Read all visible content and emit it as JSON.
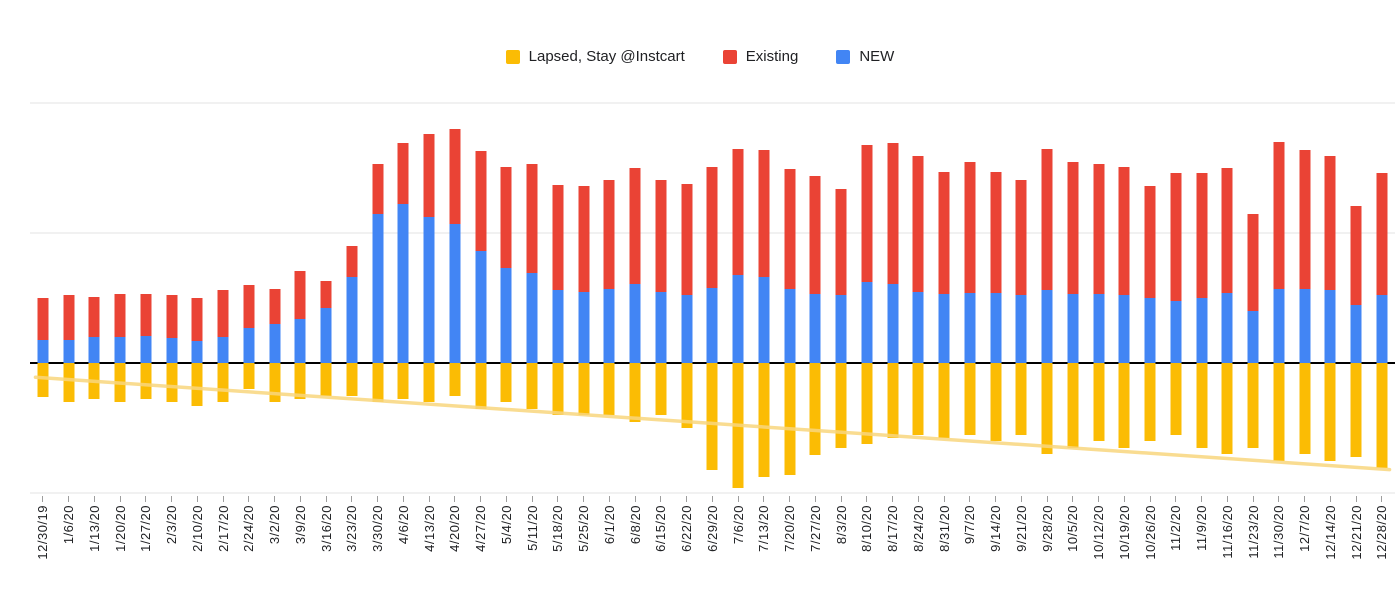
{
  "legend": {
    "position": "top",
    "items": [
      {
        "label": "Lapsed, Stay @Instcart",
        "color": "#FBBC04"
      },
      {
        "label": "Existing",
        "color": "#EA4335"
      },
      {
        "label": "NEW",
        "color": "#4285F4"
      }
    ]
  },
  "style": {
    "background": "#ffffff",
    "gridline_color": "#e3e3e3",
    "baseline_color": "#000000",
    "tick_color": "#9e9e9e",
    "label_color": "#202124"
  },
  "chart_data": {
    "type": "bar",
    "stacked": true,
    "title": "",
    "xlabel": "",
    "ylabel": "",
    "legend_position": "top",
    "grid": true,
    "ylim": [
      -100,
      200
    ],
    "gridlines": [
      200,
      100,
      0,
      -100
    ],
    "x_label_rotation_deg": 90,
    "categories": [
      "12/30/19",
      "1/6/20",
      "1/13/20",
      "1/20/20",
      "1/27/20",
      "2/3/20",
      "2/10/20",
      "2/17/20",
      "2/24/20",
      "3/2/20",
      "3/9/20",
      "3/16/20",
      "3/23/20",
      "3/30/20",
      "4/6/20",
      "4/13/20",
      "4/20/20",
      "4/27/20",
      "5/4/20",
      "5/11/20",
      "5/18/20",
      "5/25/20",
      "6/1/20",
      "6/8/20",
      "6/15/20",
      "6/22/20",
      "6/29/20",
      "7/6/20",
      "7/13/20",
      "7/20/20",
      "7/27/20",
      "8/3/20",
      "8/10/20",
      "8/17/20",
      "8/24/20",
      "8/31/20",
      "9/7/20",
      "9/14/20",
      "9/21/20",
      "9/28/20",
      "10/5/20",
      "10/12/20",
      "10/19/20",
      "10/26/20",
      "11/2/20",
      "11/9/20",
      "11/16/20",
      "11/23/20",
      "11/30/20",
      "12/7/20",
      "12/14/20",
      "12/21/20",
      "12/28/20"
    ],
    "series": [
      {
        "name": "NEW",
        "color": "#4285F4",
        "values": [
          18,
          18,
          20,
          20,
          21,
          19,
          17,
          20,
          27,
          30,
          34,
          42,
          66,
          115,
          122,
          112,
          107,
          86,
          73,
          69,
          56,
          55,
          57,
          61,
          55,
          52,
          58,
          68,
          66,
          57,
          53,
          52,
          62,
          61,
          55,
          53,
          54,
          54,
          52,
          56,
          53,
          53,
          52,
          50,
          48,
          50,
          54,
          40,
          57,
          57,
          56,
          45,
          52
        ]
      },
      {
        "name": "Existing",
        "color": "#EA4335",
        "values": [
          32,
          34,
          31,
          33,
          32,
          33,
          33,
          36,
          33,
          27,
          37,
          21,
          24,
          38,
          47,
          64,
          73,
          77,
          78,
          84,
          81,
          81,
          84,
          89,
          86,
          86,
          93,
          97,
          98,
          92,
          91,
          82,
          106,
          108,
          104,
          94,
          101,
          93,
          89,
          109,
          102,
          100,
          99,
          86,
          98,
          96,
          96,
          75,
          113,
          107,
          103,
          76,
          94
        ]
      },
      {
        "name": "Lapsed, Stay @Instcart",
        "color": "#FBBC04",
        "values": [
          -26,
          -30,
          -28,
          -30,
          -28,
          -30,
          -33,
          -30,
          -20,
          -30,
          -28,
          -25,
          -25,
          -30,
          -28,
          -30,
          -25,
          -35,
          -30,
          -35,
          -40,
          -40,
          -40,
          -45,
          -40,
          -50,
          -82,
          -96,
          -88,
          -86,
          -71,
          -65,
          -62,
          -58,
          -55,
          -58,
          -55,
          -60,
          -55,
          -70,
          -65,
          -60,
          -65,
          -60,
          -55,
          -65,
          -70,
          -65,
          -75,
          -70,
          -75,
          -72,
          -81
        ]
      }
    ],
    "trendline": {
      "series": "Lapsed, Stay @Instcart",
      "color": "#F9D77E",
      "start_value": -11,
      "end_value": -82
    }
  }
}
